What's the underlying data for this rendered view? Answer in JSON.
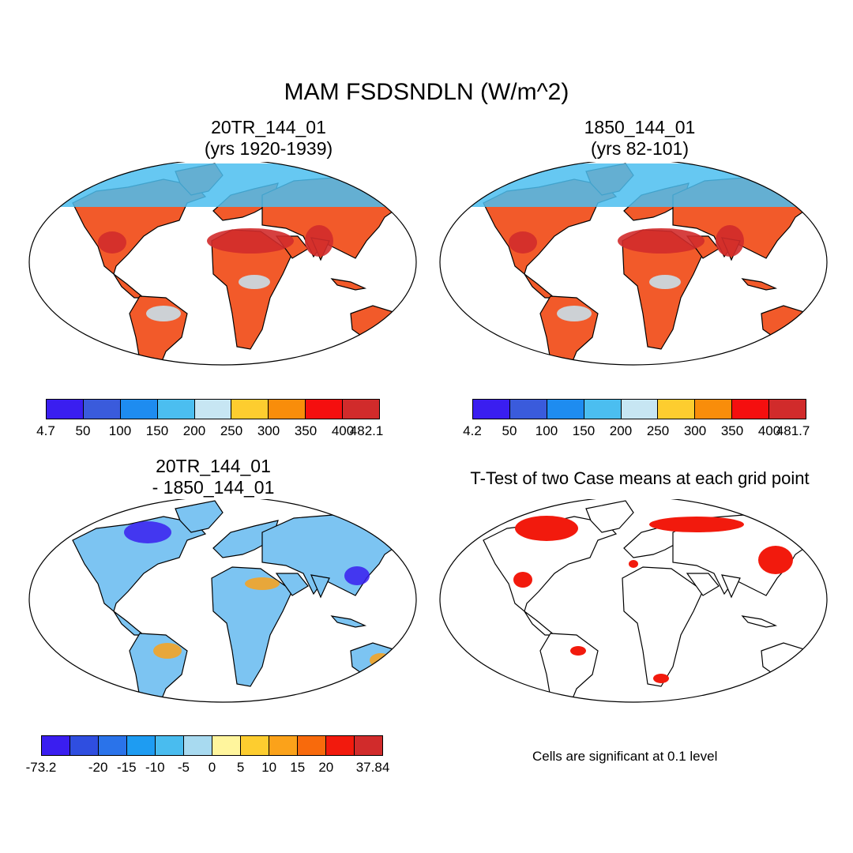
{
  "title": "MAM FSDSNDLN (W/m^2)",
  "panels": {
    "p1": {
      "line1": "20TR_144_01",
      "line2": "(yrs 1920-1939)"
    },
    "p2": {
      "line1": "1850_144_01",
      "line2": "(yrs 82-101)"
    },
    "p3": {
      "line1": "20TR_144_01",
      "line2": "- 1850_144_01"
    },
    "p4": {
      "line1": "T-Test of two Case means at each grid point"
    }
  },
  "colorbars": {
    "cb1": {
      "colors": [
        "#3a1ef0",
        "#3a5bdc",
        "#1e8cf0",
        "#4bbef0",
        "#c7e6f3",
        "#fdcd2f",
        "#f98d0a",
        "#f50f0f",
        "#d12b2b"
      ],
      "labels": [
        "4.7",
        "50",
        "100",
        "150",
        "200",
        "250",
        "300",
        "350",
        "400",
        "482.1"
      ]
    },
    "cb2": {
      "colors": [
        "#3a1ef0",
        "#3a5bdc",
        "#1e8cf0",
        "#4bbef0",
        "#c7e6f3",
        "#fdcd2f",
        "#f98d0a",
        "#f50f0f",
        "#d12b2b"
      ],
      "labels": [
        "4.2",
        "50",
        "100",
        "150",
        "200",
        "250",
        "300",
        "350",
        "400",
        "481.7"
      ]
    },
    "cb3": {
      "colors": [
        "#3a1ef0",
        "#2f4ee0",
        "#2a73ea",
        "#1e9cf2",
        "#49bcef",
        "#a8daf0",
        "#fff59d",
        "#fdcd2f",
        "#fba21a",
        "#f86a0c",
        "#f21a0d",
        "#d12b2b"
      ],
      "labels": [
        "-73.2",
        "-20",
        "-15",
        "-10",
        "-5",
        "0",
        "5",
        "10",
        "15",
        "20",
        "37.84"
      ]
    }
  },
  "note": "Cells are significant at 0.1 level"
}
